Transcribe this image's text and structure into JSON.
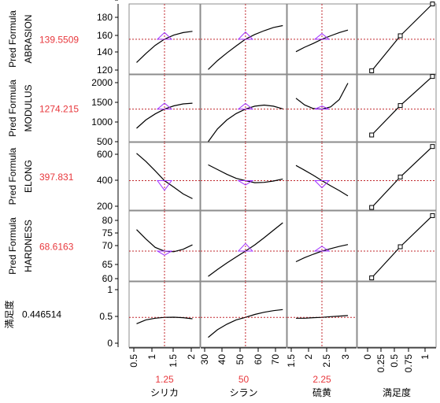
{
  "colors": {
    "value_red": "#e8383d",
    "ref_line_red": "#c0272d",
    "triangle": "#a030ff",
    "curve": "#000000",
    "frame": "#8c8c8c"
  },
  "responses": [
    {
      "title_line1": "Pred Formula",
      "title_line2": "ABRASION",
      "value": "139.5509",
      "ticks": [
        "180",
        "160",
        "140",
        "120",
        "90"
      ]
    },
    {
      "title_line1": "Pred Formula",
      "title_line2": "MODULUS",
      "value": "1274.215",
      "ticks": [
        "2000",
        "1500",
        "1000",
        "500"
      ]
    },
    {
      "title_line1": "Pred Formula",
      "title_line2": "ELONG",
      "value": "397.831",
      "ticks": [
        "600",
        "400",
        "200"
      ]
    },
    {
      "title_line1": "Pred Formula",
      "title_line2": "HARDNESS",
      "value": "68.6163",
      "ticks": [
        "80",
        "75",
        "70",
        "65",
        "60"
      ]
    }
  ],
  "desirability": {
    "title": "満足度",
    "value": "0.446514",
    "ticks": [
      "1",
      "0.5",
      "0"
    ]
  },
  "factors": [
    {
      "name": "シリカ",
      "current": "1.25",
      "ticks": [
        "0.5",
        "1",
        "1.5",
        "2"
      ]
    },
    {
      "name": "シラン",
      "current": "50",
      "ticks": [
        "30",
        "40",
        "50",
        "60",
        "70"
      ]
    },
    {
      "name": "硫黄",
      "current": "2.25",
      "ticks": [
        "1.5",
        "2",
        "2.5",
        "3"
      ]
    },
    {
      "name": "満足度",
      "current": "",
      "ticks": [
        "0",
        "0.25",
        "0.5",
        "0.75",
        "1"
      ]
    }
  ],
  "chart_data": {
    "type": "line",
    "title": "",
    "factor_settings": {
      "シリカ": 1.25,
      "シラン": 50,
      "硫黄": 2.25
    },
    "x_ranges": {
      "シリカ": [
        0.3,
        2.2
      ],
      "シラン": [
        26,
        72
      ],
      "硫黄": [
        1.25,
        3.25
      ],
      "満足度": [
        -0.05,
        1.05
      ]
    },
    "rows": [
      {
        "response": "ABRASION",
        "current": 139.5509,
        "ylim": [
          85,
          195
        ],
        "curves": {
          "シリカ": {
            "x": [
              0.5,
              0.75,
              1.0,
              1.25,
              1.5,
              1.75,
              2.0
            ],
            "y": [
              103,
              117,
              130,
              139.6,
              146,
              150,
              152
            ]
          },
          "シラン": {
            "x": [
              30,
              35,
              40,
              45,
              50,
              55,
              60,
              65,
              70
            ],
            "y": [
              92,
              106,
              118,
              129,
              139.6,
              147,
              153,
              158,
              161
            ]
          },
          "硫黄": {
            "x": [
              1.5,
              1.75,
              2.0,
              2.25,
              2.5,
              2.75,
              3.0
            ],
            "y": [
              120,
              127,
              133,
              139.6,
              145,
              150,
              154
            ]
          },
          "満足度": {
            "x": [
              0.15,
              0.55,
              1.0
            ],
            "y": [
              90,
              145,
              195
            ]
          }
        }
      },
      {
        "response": "MODULUS",
        "current": 1274.215,
        "ylim": [
          300,
          2300
        ],
        "curves": {
          "シリカ": {
            "x": [
              0.5,
              0.75,
              1.0,
              1.25,
              1.5,
              1.75,
              2.0
            ],
            "y": [
              700,
              950,
              1130,
              1274,
              1370,
              1430,
              1450
            ]
          },
          "シラン": {
            "x": [
              30,
              35,
              40,
              45,
              50,
              55,
              60,
              65,
              70
            ],
            "y": [
              300,
              680,
              950,
              1140,
              1274,
              1360,
              1395,
              1360,
              1280
            ]
          },
          "硫黄": {
            "x": [
              1.5,
              1.75,
              2.0,
              2.25,
              2.5,
              2.75,
              3.0
            ],
            "y": [
              1600,
              1400,
              1290,
              1274,
              1340,
              1560,
              2050
            ]
          },
          "満足度": {
            "x": [
              0.15,
              0.55,
              1.0
            ],
            "y": [
              500,
              1380,
              2250
            ]
          }
        }
      },
      {
        "response": "ELONG",
        "current": 397.831,
        "ylim": [
          180,
          680
        ],
        "curves": {
          "シリカ": {
            "x": [
              0.5,
              0.75,
              1.0,
              1.25,
              1.5,
              1.75,
              2.0
            ],
            "y": [
              600,
              540,
              470,
              397.8,
              350,
              300,
              265
            ]
          },
          "シラン": {
            "x": [
              30,
              35,
              40,
              45,
              50,
              55,
              60,
              65,
              70
            ],
            "y": [
              515,
              480,
              445,
              415,
              397.8,
              383,
              385,
              395,
              410
            ]
          },
          "硫黄": {
            "x": [
              1.5,
              1.75,
              2.0,
              2.25,
              2.5,
              2.75,
              3.0
            ],
            "y": [
              510,
              475,
              438,
              397.8,
              360,
              325,
              285
            ]
          },
          "満足度": {
            "x": [
              0.15,
              0.55,
              1.0
            ],
            "y": [
              200,
              425,
              650
            ]
          }
        }
      },
      {
        "response": "HARDNESS",
        "current": 68.6163,
        "ylim": [
          59,
          81.5
        ],
        "curves": {
          "シリカ": {
            "x": [
              0.5,
              0.75,
              1.0,
              1.25,
              1.5,
              1.75,
              2.0
            ],
            "y": [
              75.5,
              72.5,
              69.8,
              68.6,
              68.4,
              69.2,
              70.6
            ]
          },
          "シラン": {
            "x": [
              30,
              35,
              40,
              45,
              50,
              55,
              60,
              65,
              70
            ],
            "y": [
              60.5,
              62.7,
              64.8,
              66.7,
              68.6,
              70.6,
              72.9,
              75.3,
              77.7
            ]
          },
          "硫黄": {
            "x": [
              1.5,
              1.75,
              2.0,
              2.25,
              2.5,
              2.75,
              3.0
            ],
            "y": [
              65.2,
              66.5,
              67.6,
              68.6,
              69.4,
              70.1,
              70.7
            ]
          },
          "満足度": {
            "x": [
              0.15,
              0.55,
              1.0
            ],
            "y": [
              60,
              70,
              80
            ]
          }
        }
      },
      {
        "response": "満足度",
        "current": 0.446514,
        "ylim": [
          -0.1,
          1.1
        ],
        "curves": {
          "シリカ": {
            "x": [
              0.5,
              0.75,
              1.0,
              1.25,
              1.5,
              1.75,
              2.0
            ],
            "y": [
              0.33,
              0.4,
              0.43,
              0.4465,
              0.45,
              0.44,
              0.42
            ]
          },
          "シラン": {
            "x": [
              30,
              35,
              40,
              45,
              50,
              55,
              60,
              65,
              70
            ],
            "y": [
              0.08,
              0.22,
              0.32,
              0.4,
              0.4465,
              0.5,
              0.54,
              0.57,
              0.59
            ]
          },
          "硫黄": {
            "x": [
              1.5,
              1.75,
              2.0,
              2.25,
              2.5,
              2.75,
              3.0
            ],
            "y": [
              0.43,
              0.43,
              0.44,
              0.4465,
              0.46,
              0.47,
              0.48
            ]
          }
        }
      }
    ]
  }
}
